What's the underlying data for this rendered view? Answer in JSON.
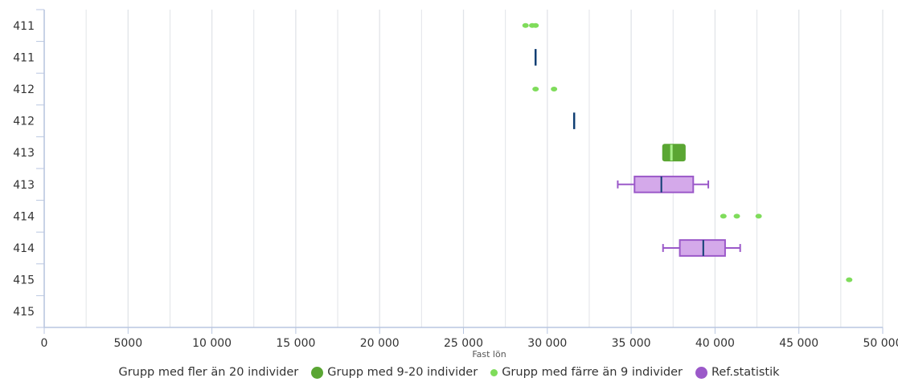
{
  "chart_data": {
    "type": "boxplot",
    "orientation": "horizontal",
    "xlabel": "Fast lön",
    "xlim": [
      0,
      50000
    ],
    "xticks": [
      0,
      5000,
      10000,
      15000,
      20000,
      25000,
      30000,
      35000,
      40000,
      45000,
      50000
    ],
    "xtick_labels": [
      "0",
      "5000",
      "10 000",
      "15 000",
      "20 000",
      "25 000",
      "30 000",
      "35 000",
      "40 000",
      "45 000",
      "50 000"
    ],
    "grid": true,
    "categories": [
      "411",
      "411",
      "412",
      "412",
      "413",
      "413",
      "414",
      "414",
      "415",
      "415"
    ],
    "colors": {
      "group_large": "#5aa633",
      "group_mid": "#5aa633",
      "group_small": "#7fdc5b",
      "ref": "#9b59c9",
      "ref_fill": "#d4a9ea",
      "median_dark": "#0f3e73",
      "median_light": "#a8f08a",
      "grid": "#e1e4e8",
      "axis": "#b9c6e0"
    },
    "series": [
      {
        "name": "Grupp med fler än 20 individer",
        "kind": "box",
        "data": []
      },
      {
        "name": "Grupp med 9-20 individer",
        "kind": "box",
        "data": [
          {
            "row": 4,
            "low": 36900,
            "q1": 36900,
            "median": 37400,
            "q3": 38200,
            "high": 38200
          }
        ]
      },
      {
        "name": "Grupp med färre än 9 individer",
        "kind": "points",
        "data": [
          {
            "row": 0,
            "x": 28700
          },
          {
            "row": 0,
            "x": 29100
          },
          {
            "row": 0,
            "x": 29300
          },
          {
            "row": 2,
            "x": 29300
          },
          {
            "row": 2,
            "x": 30400
          },
          {
            "row": 6,
            "x": 40500
          },
          {
            "row": 6,
            "x": 41300
          },
          {
            "row": 6,
            "x": 42600
          },
          {
            "row": 8,
            "x": 48000
          }
        ]
      },
      {
        "name": "Ref.statistik",
        "kind": "box",
        "data": [
          {
            "row": 1,
            "low": 29300,
            "q1": 29300,
            "median": 29300,
            "q3": 29300,
            "high": 29300
          },
          {
            "row": 3,
            "low": 31600,
            "q1": 31600,
            "median": 31600,
            "q3": 31600,
            "high": 31600
          },
          {
            "row": 5,
            "low": 34200,
            "q1": 35200,
            "median": 36800,
            "q3": 38700,
            "high": 39600
          },
          {
            "row": 7,
            "low": 36900,
            "q1": 37900,
            "median": 39300,
            "q3": 40600,
            "high": 41500
          }
        ]
      }
    ],
    "legend": {
      "position": "bottom",
      "items": [
        {
          "label": "Grupp med fler än 20 individer",
          "marker": "none"
        },
        {
          "label": "Grupp med 9-20 individer",
          "marker": "circle-large",
          "color": "#5aa633"
        },
        {
          "label": "Grupp med färre än 9 individer",
          "marker": "circle-small",
          "color": "#7fdc5b"
        },
        {
          "label": "Ref.statistik",
          "marker": "circle-large",
          "color": "#9b59c9"
        }
      ]
    }
  }
}
